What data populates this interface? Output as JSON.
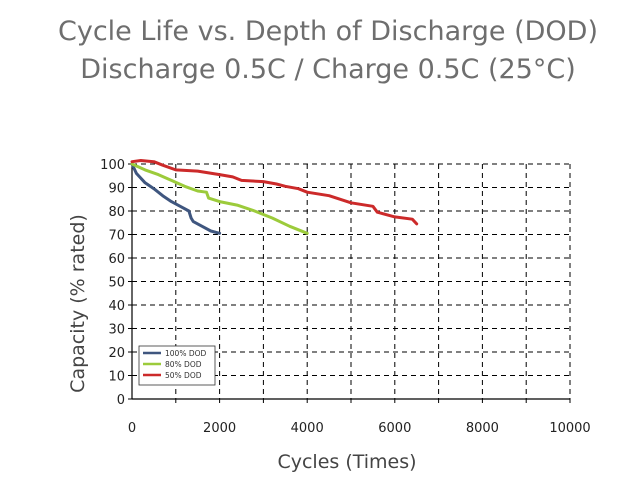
{
  "title": "Cycle Life vs. Depth of Discharge (DOD)",
  "subtitle": "Discharge 0.5C / Charge 0.5C (25°C)",
  "chart_data": {
    "type": "line",
    "xlabel": "Cycles (Times)",
    "ylabel": "Capacity (% rated)",
    "xlim": [
      0,
      10000
    ],
    "ylim": [
      0,
      100
    ],
    "xticks": [
      0,
      2000,
      4000,
      6000,
      8000,
      10000
    ],
    "yticks": [
      0,
      10,
      20,
      30,
      40,
      50,
      60,
      70,
      80,
      90,
      100
    ],
    "grid": true,
    "legend_position": "bottom-left",
    "series": [
      {
        "name": "100% DOD",
        "color": "#3f567f",
        "x": [
          0,
          100,
          300,
          500,
          700,
          900,
          1100,
          1300,
          1350,
          1400,
          1600,
          1800,
          2000
        ],
        "y": [
          100,
          96,
          92,
          89.5,
          86.5,
          84,
          82,
          80,
          77,
          75.5,
          73.5,
          71.5,
          70.5
        ]
      },
      {
        "name": "80% DOD",
        "color": "#9ccb3b",
        "x": [
          0,
          300,
          600,
          900,
          1200,
          1500,
          1700,
          1750,
          2000,
          2400,
          2800,
          3200,
          3600,
          4000
        ],
        "y": [
          100,
          97.5,
          95.5,
          93,
          90.5,
          88.5,
          88,
          85.5,
          84,
          82.5,
          80,
          77,
          73.5,
          70.5
        ]
      },
      {
        "name": "50% DOD",
        "color": "#cc2a2a",
        "x": [
          0,
          200,
          500,
          700,
          1000,
          1500,
          2000,
          2300,
          2500,
          3000,
          3300,
          3500,
          3800,
          4000,
          4500,
          5000,
          5500,
          5600,
          6000,
          6400,
          6500
        ],
        "y": [
          101,
          101.5,
          101,
          99.5,
          97.5,
          97,
          95.5,
          94.5,
          93,
          92.5,
          91.5,
          90.5,
          89.5,
          88,
          86.5,
          83.5,
          82,
          79.5,
          77.5,
          76.5,
          74.5
        ]
      }
    ]
  }
}
